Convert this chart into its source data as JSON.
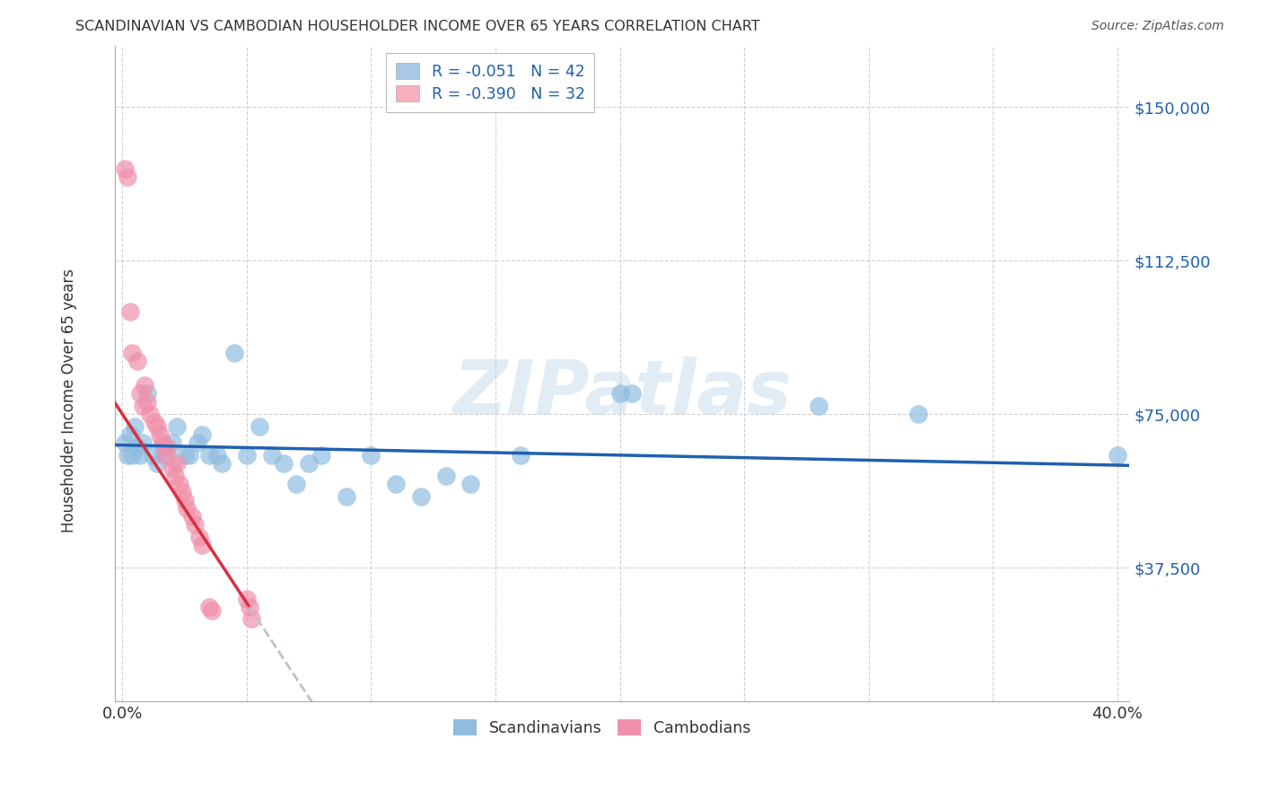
{
  "title": "SCANDINAVIAN VS CAMBODIAN HOUSEHOLDER INCOME OVER 65 YEARS CORRELATION CHART",
  "source": "Source: ZipAtlas.com",
  "ylabel": "Householder Income Over 65 years",
  "ytick_labels": [
    "$37,500",
    "$75,000",
    "$112,500",
    "$150,000"
  ],
  "ytick_vals": [
    37500,
    75000,
    112500,
    150000
  ],
  "ylim": [
    5000,
    165000
  ],
  "xlim": [
    -0.003,
    0.405
  ],
  "legend_entries": [
    {
      "label": "R = -0.051   N = 42",
      "color": "#a8c8e8"
    },
    {
      "label": "R = -0.390   N = 32",
      "color": "#f8b0c0"
    }
  ],
  "watermark": "ZIPatlas",
  "scandinavian_color": "#90bce0",
  "cambodian_color": "#f090aa",
  "trend_scand_color": "#2060b0",
  "trend_camb_color": "#d83040",
  "trend_camb_ext_color": "#c0c0cc",
  "scandinavians": [
    [
      0.001,
      68000
    ],
    [
      0.002,
      65000
    ],
    [
      0.003,
      70000
    ],
    [
      0.004,
      65000
    ],
    [
      0.005,
      72000
    ],
    [
      0.006,
      67000
    ],
    [
      0.007,
      65000
    ],
    [
      0.008,
      68000
    ],
    [
      0.01,
      80000
    ],
    [
      0.012,
      65000
    ],
    [
      0.014,
      63000
    ],
    [
      0.016,
      67000
    ],
    [
      0.018,
      65000
    ],
    [
      0.02,
      68000
    ],
    [
      0.022,
      72000
    ],
    [
      0.025,
      65000
    ],
    [
      0.027,
      65000
    ],
    [
      0.03,
      68000
    ],
    [
      0.032,
      70000
    ],
    [
      0.035,
      65000
    ],
    [
      0.038,
      65000
    ],
    [
      0.04,
      63000
    ],
    [
      0.045,
      90000
    ],
    [
      0.05,
      65000
    ],
    [
      0.055,
      72000
    ],
    [
      0.06,
      65000
    ],
    [
      0.065,
      63000
    ],
    [
      0.07,
      58000
    ],
    [
      0.075,
      63000
    ],
    [
      0.08,
      65000
    ],
    [
      0.09,
      55000
    ],
    [
      0.1,
      65000
    ],
    [
      0.11,
      58000
    ],
    [
      0.12,
      55000
    ],
    [
      0.13,
      60000
    ],
    [
      0.14,
      58000
    ],
    [
      0.16,
      65000
    ],
    [
      0.2,
      80000
    ],
    [
      0.205,
      80000
    ],
    [
      0.28,
      77000
    ],
    [
      0.32,
      75000
    ],
    [
      0.4,
      65000
    ]
  ],
  "cambodians": [
    [
      0.001,
      135000
    ],
    [
      0.002,
      133000
    ],
    [
      0.003,
      100000
    ],
    [
      0.004,
      90000
    ],
    [
      0.006,
      88000
    ],
    [
      0.007,
      80000
    ],
    [
      0.008,
      77000
    ],
    [
      0.009,
      82000
    ],
    [
      0.01,
      78000
    ],
    [
      0.011,
      75000
    ],
    [
      0.013,
      73000
    ],
    [
      0.014,
      72000
    ],
    [
      0.015,
      70000
    ],
    [
      0.016,
      68000
    ],
    [
      0.017,
      65000
    ],
    [
      0.018,
      67000
    ],
    [
      0.02,
      62000
    ],
    [
      0.021,
      60000
    ],
    [
      0.022,
      63000
    ],
    [
      0.023,
      58000
    ],
    [
      0.024,
      56000
    ],
    [
      0.025,
      54000
    ],
    [
      0.026,
      52000
    ],
    [
      0.028,
      50000
    ],
    [
      0.029,
      48000
    ],
    [
      0.031,
      45000
    ],
    [
      0.032,
      43000
    ],
    [
      0.035,
      28000
    ],
    [
      0.036,
      27000
    ],
    [
      0.05,
      30000
    ],
    [
      0.051,
      28000
    ],
    [
      0.052,
      25000
    ]
  ]
}
